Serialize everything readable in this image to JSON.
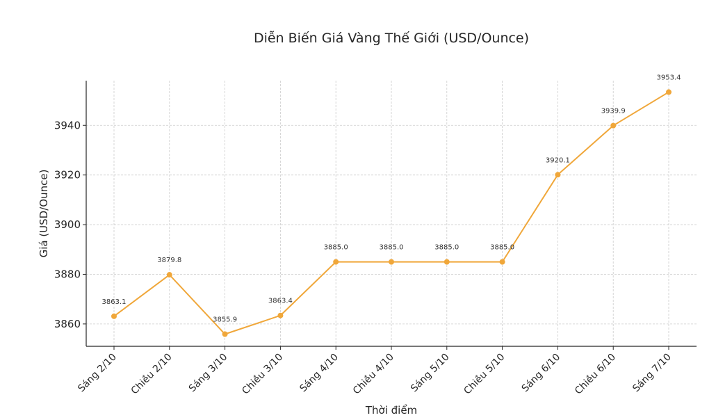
{
  "chart_data": {
    "type": "line",
    "title": "Diễn Biến Giá Vàng Thế Giới (USD/Ounce)",
    "xlabel": "Thời điểm",
    "ylabel": "Giá (USD/Ounce)",
    "categories": [
      "Sáng 2/10",
      "Chiều 2/10",
      "Sáng 3/10",
      "Chiều 3/10",
      "Sáng 4/10",
      "Chiều 4/10",
      "Sáng 5/10",
      "Chiều 5/10",
      "Sáng 6/10",
      "Chiều 6/10",
      "Sáng 7/10"
    ],
    "values": [
      3863.1,
      3879.8,
      3855.9,
      3863.4,
      3885.0,
      3885.0,
      3885.0,
      3885.0,
      3920.1,
      3939.9,
      3953.4
    ],
    "value_labels": [
      "3863.1",
      "3879.8",
      "3855.9",
      "3863.4",
      "3885.0",
      "3885.0",
      "3885.0",
      "3885.0",
      "3920.1",
      "3939.9",
      "3953.4"
    ],
    "ylim": [
      3851,
      3958
    ],
    "yticks": [
      3860,
      3880,
      3900,
      3920,
      3940
    ],
    "grid": true,
    "color": "#f0a73a"
  }
}
